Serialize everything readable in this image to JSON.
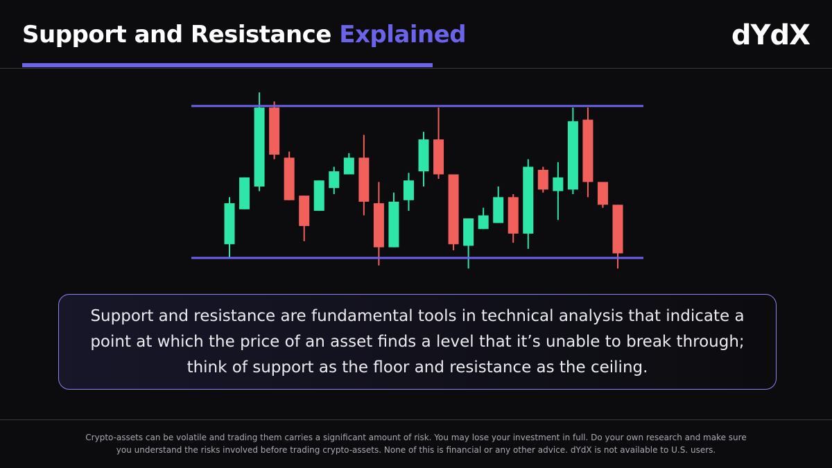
{
  "header": {
    "title": "Support and Resistance",
    "title_highlight": "Explained",
    "logo": "dYdX"
  },
  "chart_data": {
    "type": "candlestick",
    "open": [
      9,
      32,
      47,
      99,
      66,
      41,
      31,
      46,
      55,
      66,
      36,
      7,
      38,
      57,
      78,
      55,
      8,
      19,
      23,
      40,
      16,
      58,
      44,
      45,
      91,
      50,
      35
    ],
    "high": [
      40,
      53,
      109,
      103,
      70,
      41,
      51,
      60,
      69,
      81,
      50,
      43,
      56,
      83,
      99,
      55,
      26,
      33,
      47,
      42,
      65,
      60,
      63,
      99,
      99,
      50,
      35
    ],
    "low": [
      0,
      32,
      44,
      65,
      38,
      11,
      31,
      42,
      55,
      28,
      -5,
      7,
      31,
      47,
      52,
      5,
      -7,
      19,
      23,
      10,
      6,
      43,
      25,
      42,
      40,
      33,
      -7
    ],
    "close": [
      36,
      53,
      99,
      68,
      38,
      21,
      51,
      57,
      66,
      37,
      7,
      37,
      51,
      78,
      55,
      9,
      26,
      28,
      40,
      16,
      60,
      45,
      53,
      90,
      50,
      35,
      3
    ],
    "up_color": "#2ee6a8",
    "down_color": "#f2605c",
    "levels": [
      0,
      100
    ],
    "level_color": "#6b63e8",
    "ylim": [
      -8,
      110
    ]
  },
  "description": "Support and resistance are fundamental tools in technical analysis that indicate a point at which the price of an asset finds a level that it’s unable to break through; think of support as the floor and resistance as the ceiling.",
  "disclaimer": [
    "Crypto-assets can be volatile and trading them carries a significant amount of risk.  You may lose your investment in full.  Do your own research and make sure",
    "you understand the risks involved before trading crypto-assets.  None of this is financial or any other advice. dYdX is not available to U.S. users."
  ]
}
